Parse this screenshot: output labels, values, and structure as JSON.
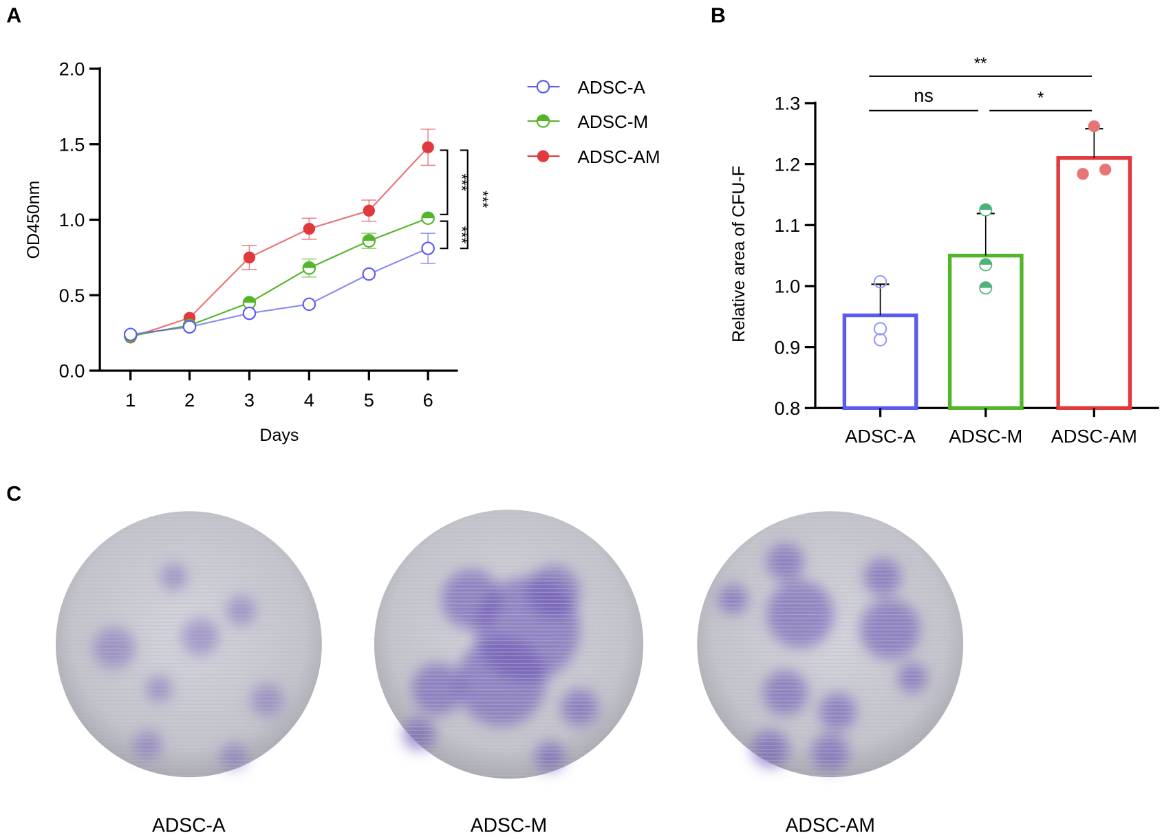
{
  "panels": {
    "a": "A",
    "b": "B",
    "c": "C"
  },
  "chart_data": [
    {
      "type": "line",
      "xlabel": "Days",
      "ylabel": "OD450nm",
      "x": [
        1,
        2,
        3,
        4,
        5,
        6
      ],
      "xticks": [
        "1",
        "2",
        "3",
        "4",
        "5",
        "6"
      ],
      "ylim": [
        0,
        2.0
      ],
      "yticks": [
        "0.0",
        "0.5",
        "1.0",
        "1.5",
        "2.0"
      ],
      "legend_position": "right",
      "series": [
        {
          "name": "ADSC-A",
          "color": "#5b5bf0",
          "marker": "open",
          "values": [
            0.24,
            0.29,
            0.38,
            0.44,
            0.64,
            0.81
          ],
          "errors": [
            0.02,
            0.02,
            0.02,
            0.02,
            0.02,
            0.1
          ]
        },
        {
          "name": "ADSC-M",
          "color": "#55b52a",
          "marker": "half",
          "values": [
            0.23,
            0.3,
            0.45,
            0.68,
            0.86,
            1.01
          ],
          "errors": [
            0.02,
            0.02,
            0.02,
            0.06,
            0.05,
            0.02
          ]
        },
        {
          "name": "ADSC-AM",
          "color": "#e03a3e",
          "marker": "filled",
          "values": [
            0.22,
            0.35,
            0.75,
            0.94,
            1.06,
            1.48
          ],
          "errors": [
            0.02,
            0.02,
            0.08,
            0.07,
            0.07,
            0.12
          ]
        }
      ],
      "annotations": [
        {
          "label": "***",
          "between": [
            "ADSC-AM",
            "ADSC-M"
          ]
        },
        {
          "label": "***",
          "between": [
            "ADSC-M",
            "ADSC-A"
          ]
        },
        {
          "label": "***",
          "between": [
            "ADSC-AM",
            "ADSC-A"
          ]
        }
      ]
    },
    {
      "type": "bar",
      "ylabel": "Relative area of CFU-F",
      "categories": [
        "ADSC-A",
        "ADSC-M",
        "ADSC-AM"
      ],
      "values": [
        0.952,
        1.05,
        1.21
      ],
      "sd": [
        0.051,
        0.069,
        0.048
      ],
      "points": [
        [
          1.007,
          0.93,
          0.912
        ],
        [
          1.125,
          1.035,
          0.997
        ],
        [
          1.262,
          1.184,
          1.191
        ]
      ],
      "colors": [
        "#5b5bf0",
        "#55b52a",
        "#e03a3e"
      ],
      "point_colors": [
        "#9a9af5",
        "#4fb07a",
        "#e87575"
      ],
      "ylim": [
        0.8,
        1.3
      ],
      "yticks": [
        "0.8",
        "0.9",
        "1.0",
        "1.1",
        "1.2",
        "1.3"
      ],
      "significance": [
        {
          "label": "ns",
          "from": 0,
          "to": 1
        },
        {
          "label": "*",
          "from": 1,
          "to": 2
        },
        {
          "label": "**",
          "from": 0,
          "to": 2
        }
      ]
    }
  ],
  "dishes": [
    {
      "label": "ADSC-A"
    },
    {
      "label": "ADSC-M"
    },
    {
      "label": "ADSC-AM"
    }
  ]
}
